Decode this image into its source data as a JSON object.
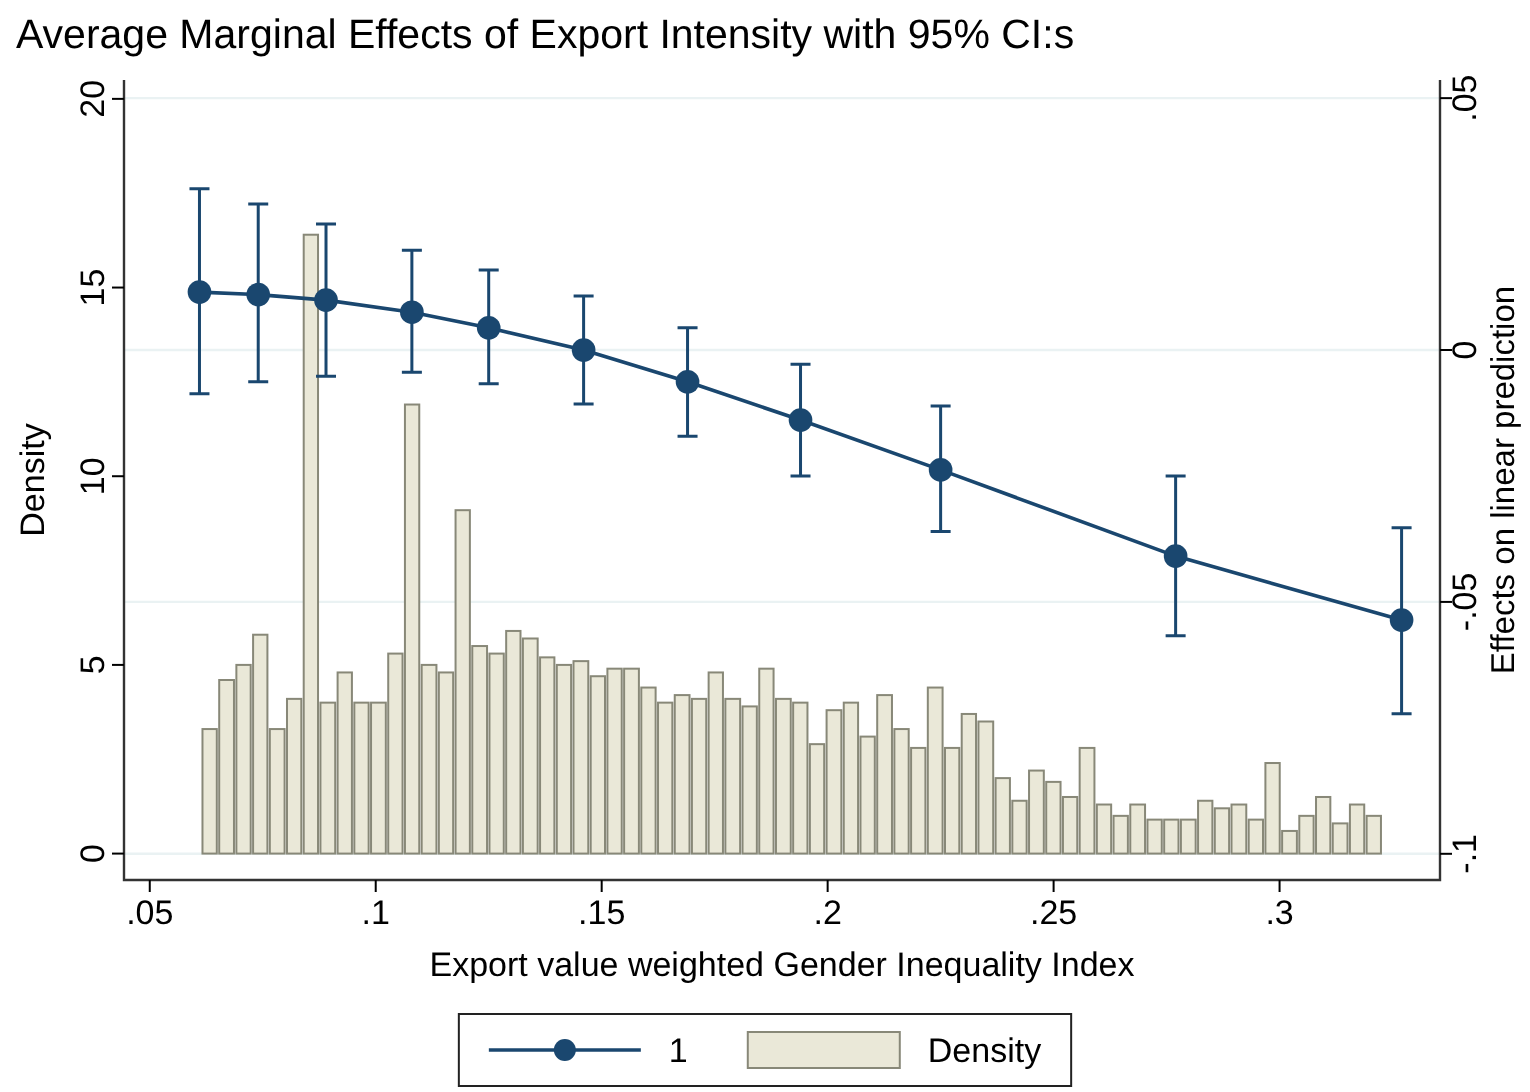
{
  "chart_data": {
    "type": "histogram",
    "title": "Average Marginal Effects of Export Intensity with 95% CI:s",
    "xlabel": "Export value weighted Gender Inequality Index",
    "ylabel": "Density",
    "y2label": "Effects on linear prediction",
    "xlim": [
      0.0443,
      0.3355
    ],
    "xticks": [
      {
        "value": 0.05,
        "label": ".05"
      },
      {
        "value": 0.1,
        "label": ".1"
      },
      {
        "value": 0.15,
        "label": ".15"
      },
      {
        "value": 0.2,
        "label": ".2"
      },
      {
        "value": 0.25,
        "label": ".25"
      },
      {
        "value": 0.3,
        "label": ".3"
      }
    ],
    "ylim": [
      -0.7,
      20.5
    ],
    "yticks": [
      0,
      5,
      10,
      15,
      20
    ],
    "y2lim": [
      -0.1052,
      0.0536
    ],
    "y2ticks": [
      {
        "value": -0.1,
        "label": "-.1"
      },
      {
        "value": -0.05,
        "label": "-.05"
      },
      {
        "value": 0,
        "label": "0"
      },
      {
        "value": 0.05,
        "label": ".05"
      }
    ],
    "grid": "y2",
    "legend": "bottom",
    "marker": "circle",
    "bins": [
      0.0614,
      0.0651,
      0.0689,
      0.0726,
      0.0763,
      0.0801,
      0.0838,
      0.0875,
      0.0913,
      0.095,
      0.0987,
      0.1025,
      0.1062,
      0.1099,
      0.1137,
      0.1174,
      0.1211,
      0.1249,
      0.1286,
      0.1323,
      0.1361,
      0.1398,
      0.1435,
      0.1473,
      0.151,
      0.1547,
      0.1585,
      0.1622,
      0.1659,
      0.1697,
      0.1734,
      0.1771,
      0.1809,
      0.1846,
      0.1883,
      0.1921,
      0.1958,
      0.1995,
      0.2033,
      0.207,
      0.2107,
      0.2145,
      0.2182,
      0.2219,
      0.2257,
      0.2294,
      0.2331,
      0.2369,
      0.2406,
      0.2443,
      0.2481,
      0.2518,
      0.2555,
      0.2593,
      0.263,
      0.2667,
      0.2705,
      0.2742,
      0.2779,
      0.2817,
      0.2854,
      0.2891,
      0.2929,
      0.2966,
      0.3003,
      0.3041,
      0.3078,
      0.3115,
      0.3153,
      0.319,
      0.3227
    ],
    "series": [
      {
        "type": "line",
        "name": "1",
        "axis": "y2",
        "color": "#1a476f",
        "x": [
          0.061,
          0.074,
          0.089,
          0.108,
          0.125,
          0.146,
          0.169,
          0.194,
          0.225,
          0.277,
          0.327
        ],
        "values": [
          0.0115,
          0.011,
          0.0099,
          0.0075,
          0.0044,
          0,
          -0.0063,
          -0.0139,
          -0.0238,
          -0.0409,
          -0.0536
        ],
        "errors": [
          [
            -0.0087,
            0.032
          ],
          [
            -0.0063,
            0.029
          ],
          [
            -0.0052,
            0.025
          ],
          [
            -0.0044,
            0.0198
          ],
          [
            -0.0067,
            0.0159
          ],
          [
            -0.0107,
            0.0107
          ],
          [
            -0.0171,
            0.0044
          ],
          [
            -0.025,
            -0.0028
          ],
          [
            -0.036,
            -0.0111
          ],
          [
            -0.0567,
            -0.025
          ],
          [
            -0.0722,
            -0.0353
          ]
        ]
      },
      {
        "name": "Density",
        "color": "#eae8d8",
        "values": [
          3.3,
          4.6,
          5.0,
          5.8,
          3.3,
          4.1,
          16.4,
          4.0,
          4.8,
          4.0,
          4.0,
          5.3,
          11.9,
          5.0,
          4.8,
          9.1,
          5.5,
          5.3,
          5.9,
          5.7,
          5.2,
          5.0,
          5.1,
          4.7,
          4.9,
          4.9,
          4.4,
          4.0,
          4.2,
          4.1,
          4.8,
          4.1,
          3.9,
          4.9,
          4.1,
          4.0,
          2.9,
          3.8,
          4.0,
          3.1,
          4.2,
          3.3,
          2.8,
          4.4,
          2.8,
          3.7,
          3.5,
          2.0,
          1.4,
          2.2,
          1.9,
          1.5,
          2.8,
          1.3,
          1.0,
          1.3,
          0.9,
          0.9,
          0.9,
          1.4,
          1.2,
          1.3,
          0.9,
          2.4,
          0.6,
          1.0,
          1.5,
          0.8,
          1.3,
          1.0
        ]
      }
    ]
  }
}
